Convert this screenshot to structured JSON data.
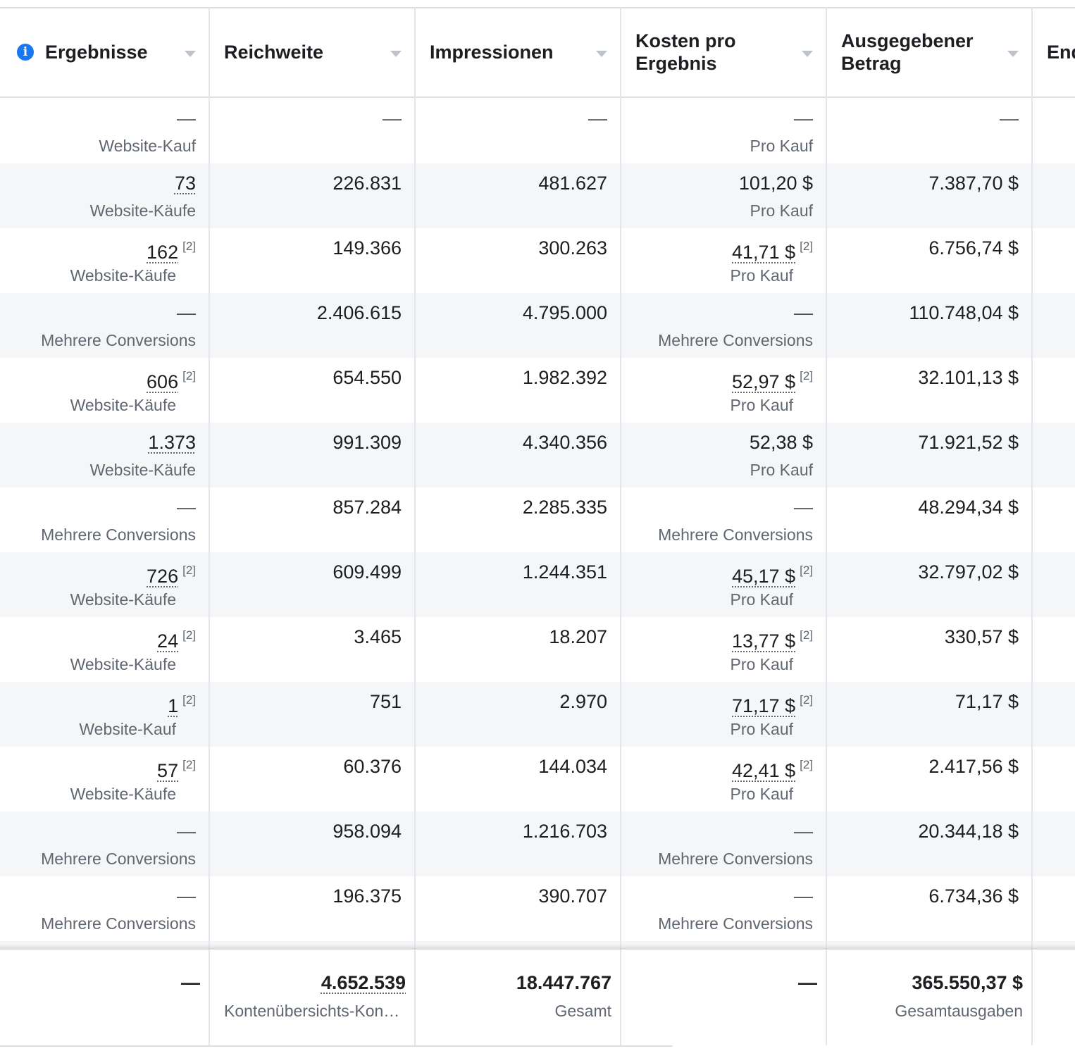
{
  "columns": [
    {
      "label": "Ergebnisse",
      "info_icon": "info-icon"
    },
    {
      "label": "Reichweite"
    },
    {
      "label": "Impressionen"
    },
    {
      "label": "Kosten pro\nErgebnis"
    },
    {
      "label": "Ausgegebener\nBetrag"
    },
    {
      "label": "End"
    }
  ],
  "rows": [
    {
      "ergebnisse": "—",
      "ergebnisse_sub": "Website-Kauf",
      "reichweite": "—",
      "impressionen": "—",
      "kosten": "—",
      "kosten_sub": "Pro Kauf",
      "betrag": "—"
    },
    {
      "ergebnisse": "73",
      "ergebnisse_sub": "Website-Käufe",
      "reichweite": "226.831",
      "impressionen": "481.627",
      "kosten": "101,20 $",
      "kosten_sub": "Pro Kauf",
      "betrag": "7.387,70 $",
      "shade": true
    },
    {
      "ergebnisse": "162",
      "ergebnisse_fn": "[2]",
      "ergebnisse_sub": "Website-Käufe",
      "reichweite": "149.366",
      "impressionen": "300.263",
      "kosten": "41,71 $",
      "kosten_fn": "[2]",
      "kosten_sub": "Pro Kauf",
      "betrag": "6.756,74 $"
    },
    {
      "ergebnisse": "—",
      "ergebnisse_sub": "Mehrere Conversions",
      "reichweite": "2.406.615",
      "impressionen": "4.795.000",
      "kosten": "—",
      "kosten_sub": "Mehrere Conversions",
      "betrag": "110.748,04 $",
      "shade": true
    },
    {
      "ergebnisse": "606",
      "ergebnisse_fn": "[2]",
      "ergebnisse_sub": "Website-Käufe",
      "reichweite": "654.550",
      "impressionen": "1.982.392",
      "kosten": "52,97 $",
      "kosten_fn": "[2]",
      "kosten_sub": "Pro Kauf",
      "betrag": "32.101,13 $"
    },
    {
      "ergebnisse": "1.373",
      "ergebnisse_sub": "Website-Käufe",
      "reichweite": "991.309",
      "impressionen": "4.340.356",
      "kosten": "52,38 $",
      "kosten_sub": "Pro Kauf",
      "betrag": "71.921,52 $",
      "shade": true
    },
    {
      "ergebnisse": "—",
      "ergebnisse_sub": "Mehrere Conversions",
      "reichweite": "857.284",
      "impressionen": "2.285.335",
      "kosten": "—",
      "kosten_sub": "Mehrere Conversions",
      "betrag": "48.294,34 $"
    },
    {
      "ergebnisse": "726",
      "ergebnisse_fn": "[2]",
      "ergebnisse_sub": "Website-Käufe",
      "reichweite": "609.499",
      "impressionen": "1.244.351",
      "kosten": "45,17 $",
      "kosten_fn": "[2]",
      "kosten_sub": "Pro Kauf",
      "betrag": "32.797,02 $",
      "shade": true
    },
    {
      "ergebnisse": "24",
      "ergebnisse_fn": "[2]",
      "ergebnisse_sub": "Website-Käufe",
      "reichweite": "3.465",
      "impressionen": "18.207",
      "kosten": "13,77 $",
      "kosten_fn": "[2]",
      "kosten_sub": "Pro Kauf",
      "betrag": "330,57 $"
    },
    {
      "ergebnisse": "1",
      "ergebnisse_fn": "[2]",
      "ergebnisse_sub": "Website-Kauf",
      "reichweite": "751",
      "impressionen": "2.970",
      "kosten": "71,17 $",
      "kosten_fn": "[2]",
      "kosten_sub": "Pro Kauf",
      "betrag": "71,17 $",
      "shade": true
    },
    {
      "ergebnisse": "57",
      "ergebnisse_fn": "[2]",
      "ergebnisse_sub": "Website-Käufe",
      "reichweite": "60.376",
      "impressionen": "144.034",
      "kosten": "42,41 $",
      "kosten_fn": "[2]",
      "kosten_sub": "Pro Kauf",
      "betrag": "2.417,56 $"
    },
    {
      "ergebnisse": "—",
      "ergebnisse_sub": "Mehrere Conversions",
      "reichweite": "958.094",
      "impressionen": "1.216.703",
      "kosten": "—",
      "kosten_sub": "Mehrere Conversions",
      "betrag": "20.344,18 $",
      "shade": true
    },
    {
      "ergebnisse": "—",
      "ergebnisse_sub": "Mehrere Conversions",
      "reichweite": "196.375",
      "impressionen": "390.707",
      "kosten": "—",
      "kosten_sub": "Mehrere Conversions",
      "betrag": "6.734,36 $"
    },
    {
      "ergebnisse": "",
      "ergebnisse_sub": "",
      "reichweite": "",
      "impressionen": "",
      "kosten": "",
      "kosten_sub": "",
      "betrag": "",
      "shade": true
    }
  ],
  "footer": {
    "ergebnisse": "—",
    "reichweite": "4.652.539",
    "reichweite_sub": "Kontenübersichts-Kon…",
    "impressionen": "18.447.767",
    "impressionen_sub": "Gesamt",
    "kosten": "—",
    "betrag": "365.550,37 $",
    "betrag_sub": "Gesamtausgaben"
  },
  "colors": {
    "accent": "#1877f2",
    "row_shade": "#f5f6f7",
    "muted_text": "#606770"
  }
}
